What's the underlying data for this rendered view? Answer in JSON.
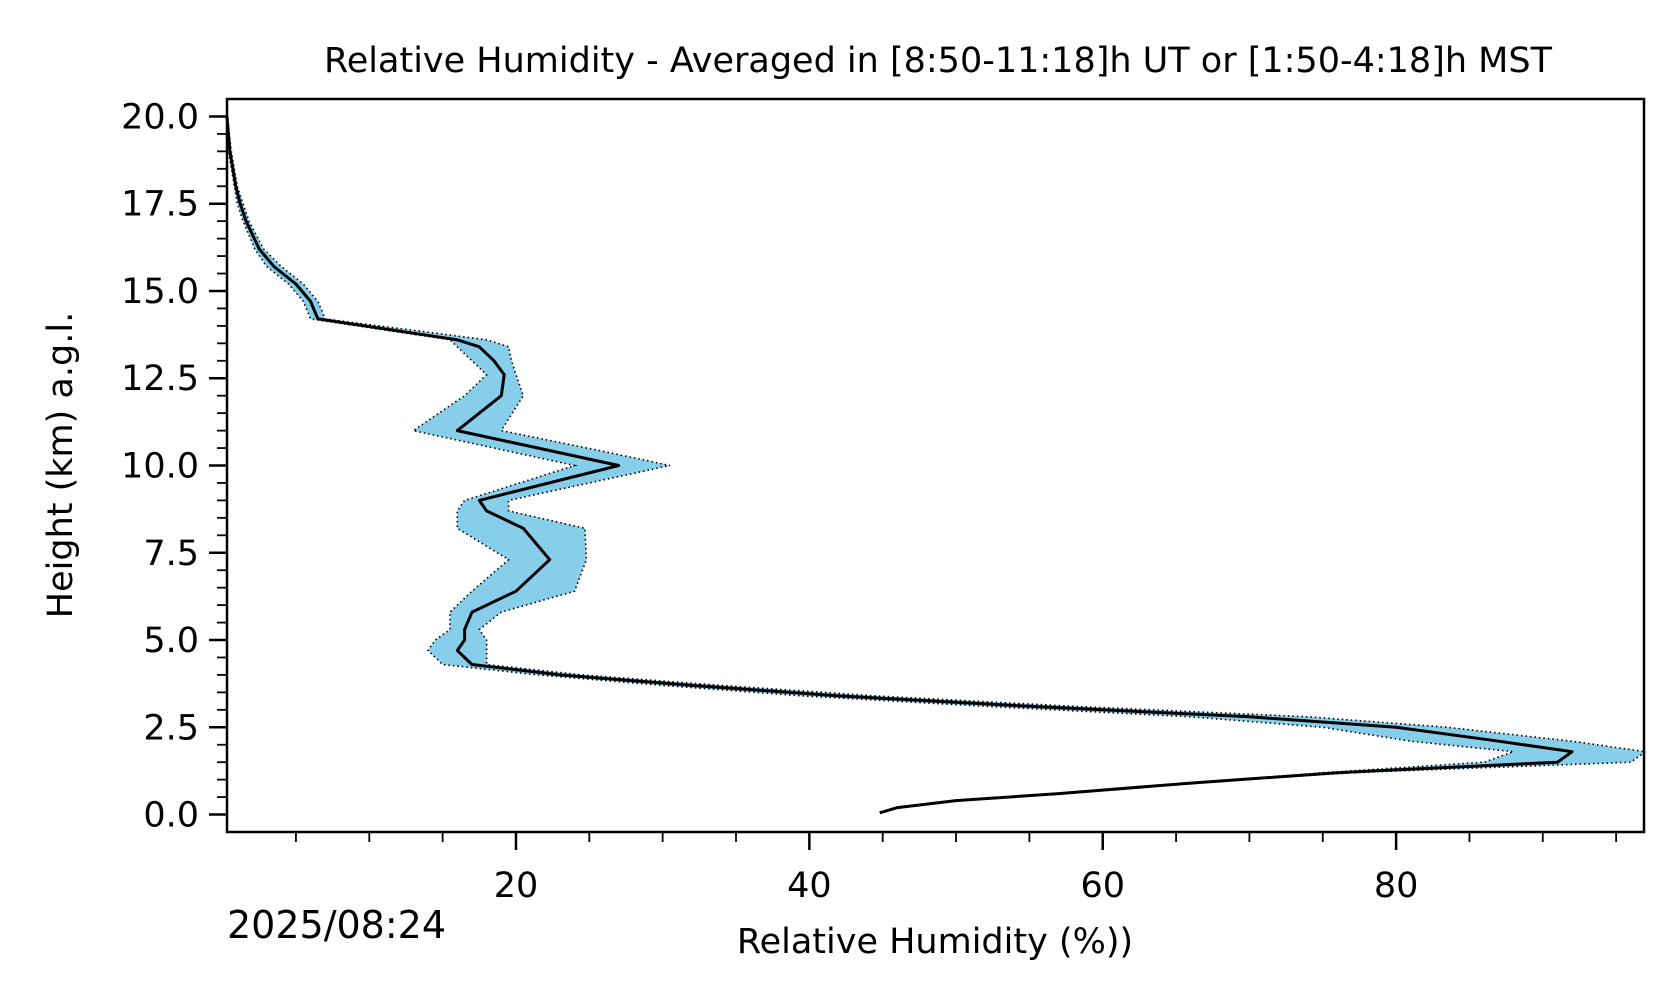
{
  "chart_data": {
    "type": "line",
    "title": "Relative Humidity - Averaged in [8:50-11:18]h UT or [1:50-4:18]h MST",
    "xlabel": "Relative Humidity (%))",
    "ylabel": "Height (km) a.g.l.",
    "date_label": "2025/08:24",
    "xlim": [
      0.3,
      96.9
    ],
    "ylim": [
      -0.5,
      20.5
    ],
    "x_ticks": [
      20,
      40,
      60,
      80
    ],
    "x_tick_labels": [
      "20",
      "40",
      "60",
      "80"
    ],
    "y_ticks": [
      0,
      2.5,
      5,
      7.5,
      10,
      12.5,
      15,
      17.5,
      20
    ],
    "y_tick_labels": [
      "0.0",
      "2.5",
      "5.0",
      "7.5",
      "10.0",
      "12.5",
      "15.0",
      "17.5",
      "20.0"
    ],
    "grid": false,
    "colors": {
      "mean_line": "#000000",
      "band_fill": "#87ceeb",
      "band_edge": "#000000"
    },
    "series": [
      {
        "role": "mean",
        "height_km": [
          0.05,
          0.2,
          0.4,
          0.6,
          0.9,
          1.2,
          1.5,
          1.8,
          2.1,
          2.5,
          2.8,
          3.1,
          3.4,
          3.7,
          4.0,
          4.3,
          4.7,
          5.0,
          5.3,
          5.8,
          6.4,
          7.3,
          8.2,
          8.7,
          9.0,
          10.0,
          11.0,
          12.0,
          12.6,
          13.0,
          13.4,
          13.6,
          14.2,
          14.7,
          15.2,
          15.7,
          16.2,
          17.0,
          17.5,
          18.0,
          19.0,
          20.0
        ],
        "rh": [
          44.8,
          46.0,
          50.0,
          57.0,
          66.0,
          76.0,
          91.0,
          92.0,
          87.0,
          80.0,
          70.0,
          55.0,
          42.0,
          32.0,
          23.0,
          17.0,
          16.0,
          16.5,
          16.5,
          17.0,
          20.0,
          22.3,
          20.5,
          18.0,
          17.5,
          27.0,
          16.0,
          19.0,
          19.2,
          18.5,
          17.5,
          16.0,
          6.5,
          6.0,
          5.0,
          3.5,
          2.5,
          1.6,
          1.2,
          0.9,
          0.5,
          0.3
        ]
      },
      {
        "role": "upper_bound",
        "height_km": [
          0.05,
          0.2,
          0.4,
          0.6,
          0.9,
          1.2,
          1.5,
          1.8,
          2.1,
          2.5,
          2.8,
          3.1,
          3.4,
          3.7,
          4.0,
          4.3,
          4.7,
          5.0,
          5.3,
          5.8,
          6.4,
          7.3,
          8.2,
          8.7,
          9.0,
          10.0,
          10.4,
          11.0,
          12.0,
          12.6,
          13.0,
          13.4,
          13.6,
          14.2,
          14.7,
          15.2,
          15.7,
          16.2,
          17.0,
          17.5,
          18.0,
          19.0,
          20.0
        ],
        "rh": [
          44.8,
          46.0,
          50.0,
          57.0,
          66.0,
          77.0,
          96.0,
          97.0,
          92.0,
          83.5,
          74.0,
          58.0,
          44.5,
          34.0,
          24.5,
          18.0,
          18.0,
          18.0,
          17.5,
          19.0,
          24.0,
          24.8,
          24.7,
          19.5,
          19.5,
          30.5,
          26.0,
          19.0,
          20.5,
          20.0,
          19.7,
          19.5,
          18.0,
          7.0,
          6.5,
          5.5,
          4.0,
          2.8,
          1.8,
          1.4,
          1.0,
          0.6,
          0.3
        ]
      },
      {
        "role": "lower_bound",
        "height_km": [
          0.05,
          0.2,
          0.4,
          0.6,
          0.9,
          1.2,
          1.5,
          1.8,
          2.1,
          2.5,
          2.8,
          3.1,
          3.4,
          3.7,
          4.0,
          4.3,
          4.7,
          5.0,
          5.3,
          5.8,
          6.4,
          7.3,
          8.2,
          8.7,
          9.0,
          10.0,
          11.0,
          12.0,
          12.6,
          13.0,
          13.4,
          13.6,
          14.2,
          14.7,
          15.2,
          15.7,
          16.2,
          17.0,
          17.5,
          18.0,
          19.0,
          20.0
        ],
        "rh": [
          44.8,
          46.0,
          50.0,
          57.0,
          66.0,
          75.0,
          86.0,
          88.0,
          81.0,
          75.0,
          66.0,
          52.0,
          39.5,
          30.0,
          21.5,
          15.0,
          14.0,
          14.5,
          15.5,
          15.5,
          17.0,
          19.5,
          16.0,
          16.0,
          16.5,
          24.0,
          13.0,
          16.5,
          18.0,
          17.0,
          16.0,
          15.5,
          6.0,
          5.5,
          4.5,
          3.0,
          2.2,
          1.4,
          1.0,
          0.8,
          0.4,
          0.3
        ]
      }
    ]
  }
}
